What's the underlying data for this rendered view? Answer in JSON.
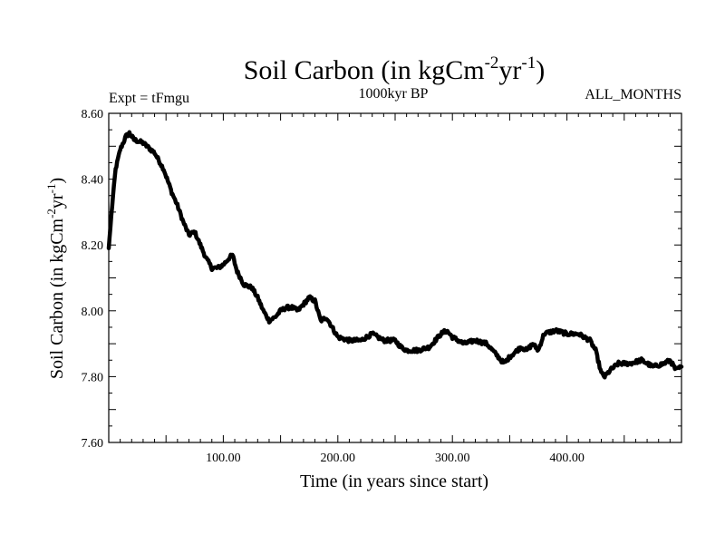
{
  "chart_data": {
    "type": "line",
    "title": {
      "main": "Soil Carbon (in kgCm",
      "sup1": "-2",
      "mid": "yr",
      "sup2": "-1",
      "end": ")"
    },
    "subtitle_left": "Expt = tFmgu",
    "subtitle_center": "1000kyr BP",
    "subtitle_right": "ALL_MONTHS",
    "xlabel": "Time (in years since start)",
    "ylabel": {
      "main": "Soil Carbon (in kgCm",
      "sup1": "-2",
      "mid": "yr",
      "sup2": "-1",
      "end": ")"
    },
    "xlim": [
      0,
      500
    ],
    "ylim": [
      7.6,
      8.6
    ],
    "x_ticks": [
      {
        "value": 100,
        "label": "100.00"
      },
      {
        "value": 200,
        "label": "200.00"
      },
      {
        "value": 300,
        "label": "300.00"
      },
      {
        "value": 400,
        "label": "400.00"
      }
    ],
    "y_ticks": [
      {
        "value": 7.6,
        "label": "7.60"
      },
      {
        "value": 7.8,
        "label": "7.80"
      },
      {
        "value": 8.0,
        "label": "8.00"
      },
      {
        "value": 8.2,
        "label": "8.20"
      },
      {
        "value": 8.4,
        "label": "8.40"
      },
      {
        "value": 8.6,
        "label": "8.60"
      }
    ],
    "series": [
      {
        "name": "Soil Carbon",
        "color": "#000000",
        "x": [
          0,
          3,
          6,
          10,
          15,
          18,
          22,
          30,
          40,
          48,
          55,
          60,
          65,
          70,
          75,
          80,
          85,
          90,
          95,
          100,
          105,
          108,
          112,
          118,
          125,
          130,
          135,
          140,
          145,
          150,
          155,
          160,
          165,
          170,
          175,
          180,
          185,
          190,
          195,
          200,
          210,
          220,
          230,
          240,
          250,
          255,
          260,
          265,
          270,
          280,
          290,
          295,
          300,
          310,
          320,
          330,
          340,
          345,
          350,
          360,
          365,
          370,
          375,
          380,
          390,
          400,
          410,
          420,
          425,
          430,
          433,
          438,
          445,
          455,
          465,
          475,
          485,
          490,
          495,
          500
        ],
        "y": [
          8.19,
          8.32,
          8.43,
          8.49,
          8.53,
          8.54,
          8.52,
          8.51,
          8.48,
          8.43,
          8.36,
          8.32,
          8.27,
          8.23,
          8.24,
          8.2,
          8.16,
          8.13,
          8.13,
          8.14,
          8.16,
          8.17,
          8.12,
          8.08,
          8.07,
          8.04,
          8.0,
          7.97,
          7.98,
          8.0,
          8.01,
          8.01,
          8.0,
          8.02,
          8.04,
          8.03,
          7.97,
          7.98,
          7.95,
          7.92,
          7.91,
          7.91,
          7.93,
          7.91,
          7.91,
          7.89,
          7.88,
          7.88,
          7.88,
          7.89,
          7.93,
          7.94,
          7.92,
          7.9,
          7.91,
          7.9,
          7.86,
          7.84,
          7.86,
          7.89,
          7.88,
          7.9,
          7.88,
          7.93,
          7.94,
          7.93,
          7.93,
          7.91,
          7.88,
          7.81,
          7.8,
          7.82,
          7.84,
          7.84,
          7.85,
          7.83,
          7.84,
          7.85,
          7.82,
          7.83
        ]
      }
    ],
    "line_width": 4.5,
    "noise_amplitude": 0.006
  }
}
